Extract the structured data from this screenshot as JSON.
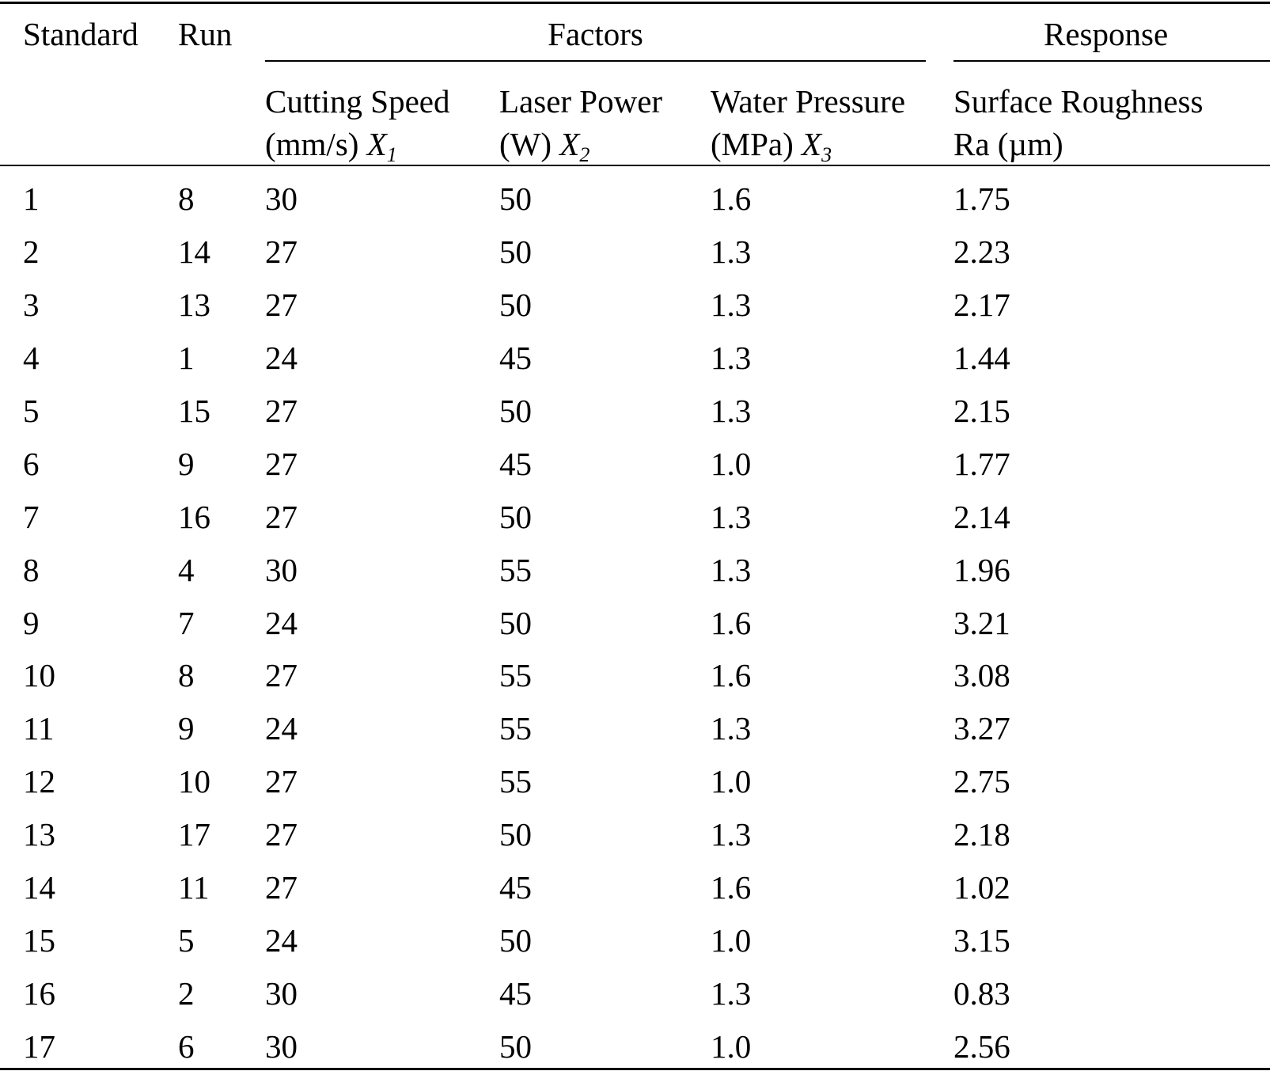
{
  "table": {
    "header": {
      "standard": "Standard",
      "run": "Run",
      "factors": "Factors",
      "response": "Response",
      "columns": [
        {
          "line1": "Cutting Speed",
          "line2": "(mm/s)",
          "symbol": "X",
          "subscript": "1"
        },
        {
          "line1": "Laser Power",
          "line2": "(W)",
          "symbol": "X",
          "subscript": "2"
        },
        {
          "line1": "Water Pressure",
          "line2": "(MPa)",
          "symbol": "X",
          "subscript": "3"
        },
        {
          "line1": "Surface Roughness",
          "line2": "Ra (µm)"
        }
      ]
    },
    "rows": [
      [
        "1",
        "8",
        "30",
        "50",
        "1.6",
        "1.75"
      ],
      [
        "2",
        "14",
        "27",
        "50",
        "1.3",
        "2.23"
      ],
      [
        "3",
        "13",
        "27",
        "50",
        "1.3",
        "2.17"
      ],
      [
        "4",
        "1",
        "24",
        "45",
        "1.3",
        "1.44"
      ],
      [
        "5",
        "15",
        "27",
        "50",
        "1.3",
        "2.15"
      ],
      [
        "6",
        "9",
        "27",
        "45",
        "1.0",
        "1.77"
      ],
      [
        "7",
        "16",
        "27",
        "50",
        "1.3",
        "2.14"
      ],
      [
        "8",
        "4",
        "30",
        "55",
        "1.3",
        "1.96"
      ],
      [
        "9",
        "7",
        "24",
        "50",
        "1.6",
        "3.21"
      ],
      [
        "10",
        "8",
        "27",
        "55",
        "1.6",
        "3.08"
      ],
      [
        "11",
        "9",
        "24",
        "55",
        "1.3",
        "3.27"
      ],
      [
        "12",
        "10",
        "27",
        "55",
        "1.0",
        "2.75"
      ],
      [
        "13",
        "17",
        "27",
        "50",
        "1.3",
        "2.18"
      ],
      [
        "14",
        "11",
        "27",
        "45",
        "1.6",
        "1.02"
      ],
      [
        "15",
        "5",
        "24",
        "50",
        "1.0",
        "3.15"
      ],
      [
        "16",
        "2",
        "30",
        "45",
        "1.3",
        "0.83"
      ],
      [
        "17",
        "6",
        "30",
        "50",
        "1.0",
        "2.56"
      ]
    ]
  }
}
